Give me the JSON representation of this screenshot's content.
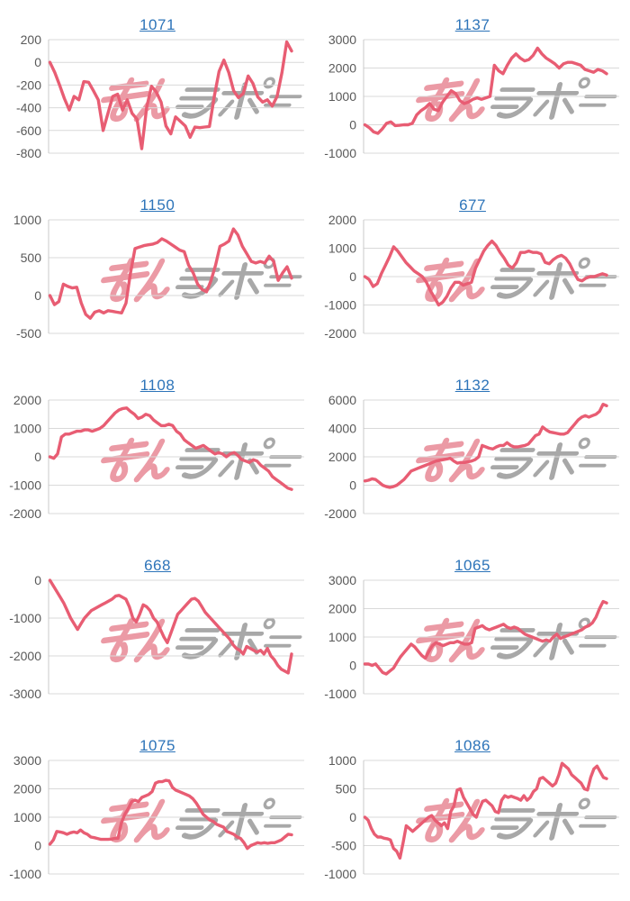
{
  "watermark": {
    "text": "みんレポ",
    "pink_color": "#eb9aa5",
    "gray_color": "#a8a8a8"
  },
  "chart_style": {
    "line_color": "#e85d73",
    "grid_color": "#d9d9d9",
    "axis_color": "#c8c8c8",
    "tick_label_color": "#595959",
    "title_color": "#2d74b9",
    "background": "#ffffff"
  },
  "chart_data": [
    {
      "type": "line",
      "title": "1071",
      "ylim": [
        -800,
        200
      ],
      "yticks": [
        200,
        0,
        -200,
        -400,
        -600,
        -800
      ],
      "values": [
        0,
        -90,
        -200,
        -320,
        -420,
        -300,
        -330,
        -170,
        -175,
        -250,
        -330,
        -600,
        -450,
        -300,
        -280,
        -420,
        -330,
        -450,
        -500,
        -760,
        -400,
        -210,
        -260,
        -350,
        -560,
        -630,
        -480,
        -520,
        -560,
        -660,
        -570,
        -575,
        -570,
        -565,
        -300,
        -80,
        20,
        -90,
        -250,
        -310,
        -275,
        -120,
        -185,
        -305,
        -350,
        -330,
        -385,
        -300,
        -90,
        180,
        100
      ]
    },
    {
      "type": "line",
      "title": "1137",
      "ylim": [
        -1000,
        3000
      ],
      "yticks": [
        3000,
        2000,
        1000,
        0,
        -1000
      ],
      "values": [
        0,
        -100,
        -250,
        -300,
        -150,
        50,
        100,
        -30,
        -20,
        0,
        0,
        50,
        350,
        500,
        600,
        750,
        550,
        500,
        800,
        1000,
        1200,
        1100,
        850,
        750,
        800,
        900,
        950,
        900,
        950,
        1000,
        2100,
        1900,
        1800,
        2100,
        2350,
        2500,
        2350,
        2250,
        2300,
        2450,
        2700,
        2500,
        2350,
        2250,
        2150,
        2000,
        2150,
        2200,
        2200,
        2150,
        2100,
        1950,
        1900,
        1850,
        1950,
        1900,
        1800
      ]
    },
    {
      "type": "line",
      "title": "1150",
      "ylim": [
        -500,
        1000
      ],
      "yticks": [
        1000,
        500,
        0,
        -500
      ],
      "values": [
        0,
        -120,
        -80,
        150,
        120,
        100,
        110,
        -100,
        -250,
        -300,
        -220,
        -200,
        -230,
        -200,
        -210,
        -220,
        -230,
        -100,
        300,
        620,
        640,
        660,
        670,
        680,
        700,
        750,
        720,
        680,
        640,
        600,
        580,
        400,
        300,
        150,
        80,
        50,
        200,
        400,
        650,
        680,
        720,
        880,
        800,
        650,
        550,
        450,
        430,
        450,
        430,
        520,
        450,
        200,
        300,
        380,
        230
      ]
    },
    {
      "type": "line",
      "title": "677",
      "ylim": [
        -2000,
        2000
      ],
      "yticks": [
        2000,
        1000,
        0,
        -1000,
        -2000
      ],
      "values": [
        0,
        -100,
        -350,
        -250,
        100,
        400,
        700,
        1050,
        900,
        700,
        500,
        350,
        200,
        100,
        0,
        -200,
        -500,
        -750,
        -1000,
        -900,
        -700,
        -400,
        -200,
        -200,
        -300,
        -250,
        -200,
        300,
        600,
        900,
        1100,
        1250,
        1100,
        850,
        650,
        400,
        300,
        500,
        850,
        850,
        900,
        850,
        850,
        800,
        500,
        450,
        600,
        700,
        750,
        650,
        450,
        150,
        -100,
        -150,
        -50,
        0,
        0,
        50,
        100,
        50
      ]
    },
    {
      "type": "line",
      "title": "1108",
      "ylim": [
        -2000,
        2000
      ],
      "yticks": [
        2000,
        1000,
        0,
        -1000,
        -2000
      ],
      "values": [
        0,
        -50,
        100,
        700,
        800,
        800,
        850,
        900,
        900,
        950,
        950,
        900,
        950,
        1000,
        1100,
        1250,
        1400,
        1550,
        1650,
        1700,
        1720,
        1600,
        1500,
        1350,
        1400,
        1500,
        1450,
        1300,
        1200,
        1100,
        1100,
        1150,
        1100,
        900,
        800,
        600,
        500,
        400,
        300,
        350,
        400,
        300,
        200,
        100,
        150,
        100,
        0,
        100,
        150,
        50,
        -100,
        -150,
        -200,
        -100,
        -150,
        -300,
        -400,
        -500,
        -700,
        -800,
        -900,
        -1000,
        -1100,
        -1150
      ]
    },
    {
      "type": "line",
      "title": "1132",
      "ylim": [
        -2000,
        6000
      ],
      "yticks": [
        6000,
        4000,
        2000,
        0,
        -2000
      ],
      "values": [
        300,
        350,
        450,
        400,
        200,
        0,
        -100,
        -150,
        -100,
        0,
        200,
        400,
        700,
        1000,
        1100,
        1200,
        1300,
        1400,
        1500,
        1600,
        1700,
        1750,
        1800,
        1850,
        1900,
        1700,
        1550,
        1600,
        1600,
        1650,
        1700,
        1800,
        2000,
        2800,
        2700,
        2600,
        2550,
        2700,
        2800,
        2800,
        3000,
        2800,
        2700,
        2700,
        2750,
        2800,
        2900,
        3200,
        3500,
        3600,
        4100,
        3900,
        3750,
        3700,
        3650,
        3600,
        3600,
        3700,
        4000,
        4300,
        4600,
        4800,
        4900,
        4800,
        4900,
        5000,
        5200,
        5700,
        5600
      ]
    },
    {
      "type": "line",
      "title": "668",
      "ylim": [
        -3000,
        0
      ],
      "yticks": [
        0,
        -1000,
        -2000,
        -3000
      ],
      "values": [
        0,
        -150,
        -300,
        -450,
        -600,
        -800,
        -1000,
        -1150,
        -1300,
        -1150,
        -1000,
        -900,
        -800,
        -750,
        -700,
        -650,
        -600,
        -550,
        -500,
        -420,
        -400,
        -450,
        -500,
        -700,
        -1000,
        -1100,
        -900,
        -650,
        -700,
        -800,
        -1000,
        -1100,
        -1300,
        -1500,
        -1650,
        -1400,
        -1150,
        -900,
        -800,
        -700,
        -600,
        -500,
        -480,
        -550,
        -700,
        -850,
        -950,
        -1050,
        -1150,
        -1250,
        -1350,
        -1450,
        -1550,
        -1700,
        -1800,
        -1850,
        -1950,
        -1750,
        -1800,
        -1850,
        -1900,
        -1850,
        -1950,
        -1800,
        -2000,
        -2100,
        -2250,
        -2350,
        -2400,
        -2450,
        -1950
      ]
    },
    {
      "type": "line",
      "title": "1065",
      "ylim": [
        -1000,
        3000
      ],
      "yticks": [
        3000,
        2000,
        1000,
        0,
        -1000
      ],
      "values": [
        50,
        50,
        0,
        50,
        -100,
        -250,
        -300,
        -200,
        -100,
        100,
        300,
        450,
        600,
        750,
        650,
        500,
        350,
        250,
        500,
        700,
        800,
        750,
        700,
        750,
        800,
        800,
        850,
        800,
        750,
        750,
        800,
        1300,
        1350,
        1400,
        1300,
        1250,
        1300,
        1350,
        1400,
        1450,
        1350,
        1300,
        1350,
        1300,
        1200,
        1100,
        1050,
        1000,
        950,
        900,
        850,
        900,
        850,
        1000,
        1100,
        950,
        1000,
        1050,
        1100,
        1150,
        1200,
        1250,
        1350,
        1400,
        1500,
        1700,
        2000,
        2250,
        2200
      ]
    },
    {
      "type": "line",
      "title": "1075",
      "ylim": [
        -1000,
        3000
      ],
      "yticks": [
        3000,
        2000,
        1000,
        0,
        -1000
      ],
      "values": [
        50,
        200,
        500,
        480,
        450,
        400,
        450,
        480,
        450,
        550,
        450,
        400,
        300,
        280,
        250,
        220,
        220,
        220,
        230,
        250,
        250,
        800,
        1100,
        1300,
        1550,
        1600,
        1550,
        1700,
        1750,
        1800,
        1900,
        2200,
        2250,
        2250,
        2300,
        2280,
        2050,
        1950,
        1900,
        1850,
        1800,
        1750,
        1650,
        1500,
        1300,
        1100,
        1000,
        900,
        850,
        750,
        700,
        650,
        500,
        450,
        400,
        300,
        250,
        100,
        -100,
        0,
        50,
        100,
        80,
        100,
        80,
        100,
        100,
        150,
        200,
        300,
        400,
        380
      ]
    },
    {
      "type": "line",
      "title": "1086",
      "ylim": [
        -1000,
        1000
      ],
      "yticks": [
        1000,
        500,
        0,
        -500,
        -1000
      ],
      "values": [
        0,
        -50,
        -200,
        -300,
        -350,
        -350,
        -370,
        -380,
        -400,
        -550,
        -600,
        -720,
        -450,
        -150,
        -200,
        -250,
        -200,
        -150,
        -100,
        -50,
        0,
        30,
        -50,
        -100,
        -150,
        -100,
        -200,
        100,
        200,
        480,
        500,
        350,
        250,
        150,
        50,
        0,
        150,
        280,
        300,
        250,
        200,
        100,
        80,
        300,
        380,
        350,
        370,
        350,
        330,
        300,
        380,
        300,
        350,
        450,
        500,
        680,
        700,
        650,
        600,
        550,
        600,
        750,
        950,
        900,
        850,
        750,
        700,
        650,
        600,
        500,
        480,
        700,
        850,
        900,
        800,
        700,
        680
      ]
    }
  ]
}
